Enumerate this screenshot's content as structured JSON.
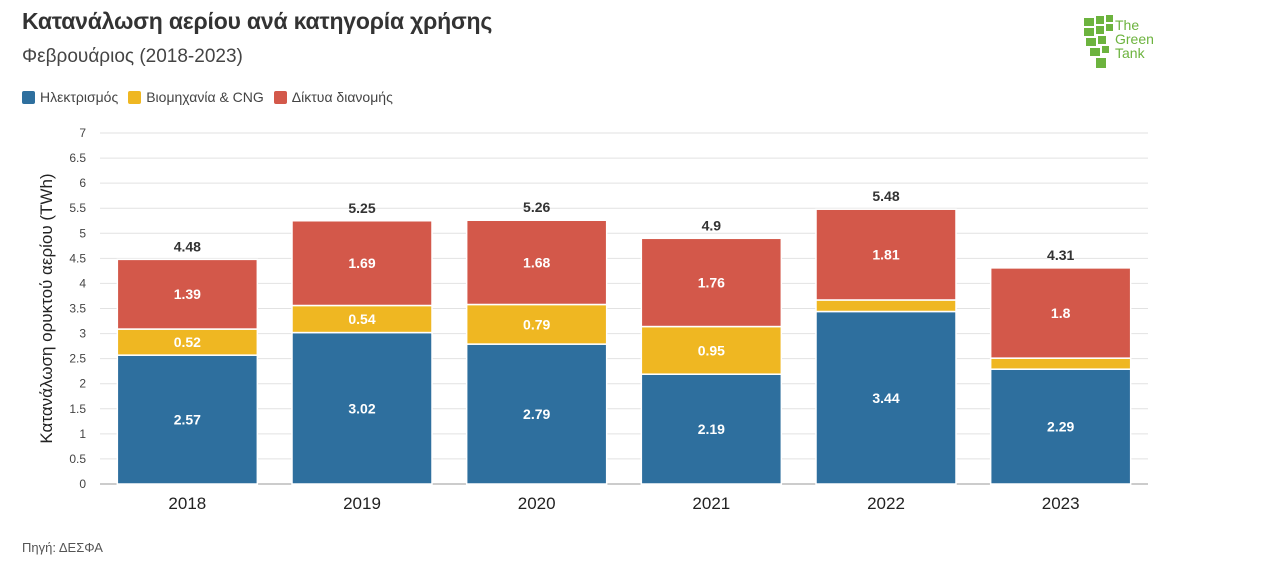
{
  "title": "Κατανάλωση αερίου ανά κατηγορία χρήσης",
  "subtitle": "Φεβρουάριος (2018-2023)",
  "source": "Πηγή: ΔΕΣΦΑ",
  "logo": {
    "line1": "The",
    "line2": "Green",
    "line3": "Tank"
  },
  "colors": {
    "electricity": "#2e6f9e",
    "industry": "#efb722",
    "networks": "#d3584a",
    "logo_green": "#6cb33e"
  },
  "chart_data": {
    "type": "bar",
    "stacked": true,
    "title": "Κατανάλωση αερίου ανά κατηγορία χρήσης",
    "subtitle": "Φεβρουάριος (2018-2023)",
    "xlabel": "",
    "ylabel": "Κατανάλωση ορυκτού αερίου (TWh)",
    "ylim": [
      0,
      7
    ],
    "yticks": [
      "0",
      "0.5",
      "1",
      "1.5",
      "2",
      "2.5",
      "3",
      "3.5",
      "4",
      "4.5",
      "5",
      "5.5",
      "6",
      "6.5",
      "7"
    ],
    "legend_position": "top-left",
    "categories": [
      "2018",
      "2019",
      "2020",
      "2021",
      "2022",
      "2023"
    ],
    "series": [
      {
        "name": "Ηλεκτρισμός",
        "key": "electricity",
        "values": [
          2.57,
          3.02,
          2.79,
          2.19,
          3.44,
          2.29
        ],
        "labels": [
          "2.57",
          "3.02",
          "2.79",
          "2.19",
          "3.44",
          "2.29"
        ]
      },
      {
        "name": "Βιομηχανία & CNG",
        "key": "industry",
        "values": [
          0.52,
          0.54,
          0.79,
          0.95,
          0.23,
          0.22
        ],
        "labels": [
          "0.52",
          "0.54",
          "0.79",
          "0.95",
          "",
          ""
        ]
      },
      {
        "name": "Δίκτυα διανομής",
        "key": "networks",
        "values": [
          1.39,
          1.69,
          1.68,
          1.76,
          1.81,
          1.8
        ],
        "labels": [
          "1.39",
          "1.69",
          "1.68",
          "1.76",
          "1.81",
          "1.8"
        ]
      }
    ],
    "totals": [
      "4.48",
      "5.25",
      "5.26",
      "4.9",
      "5.48",
      "4.31"
    ]
  }
}
